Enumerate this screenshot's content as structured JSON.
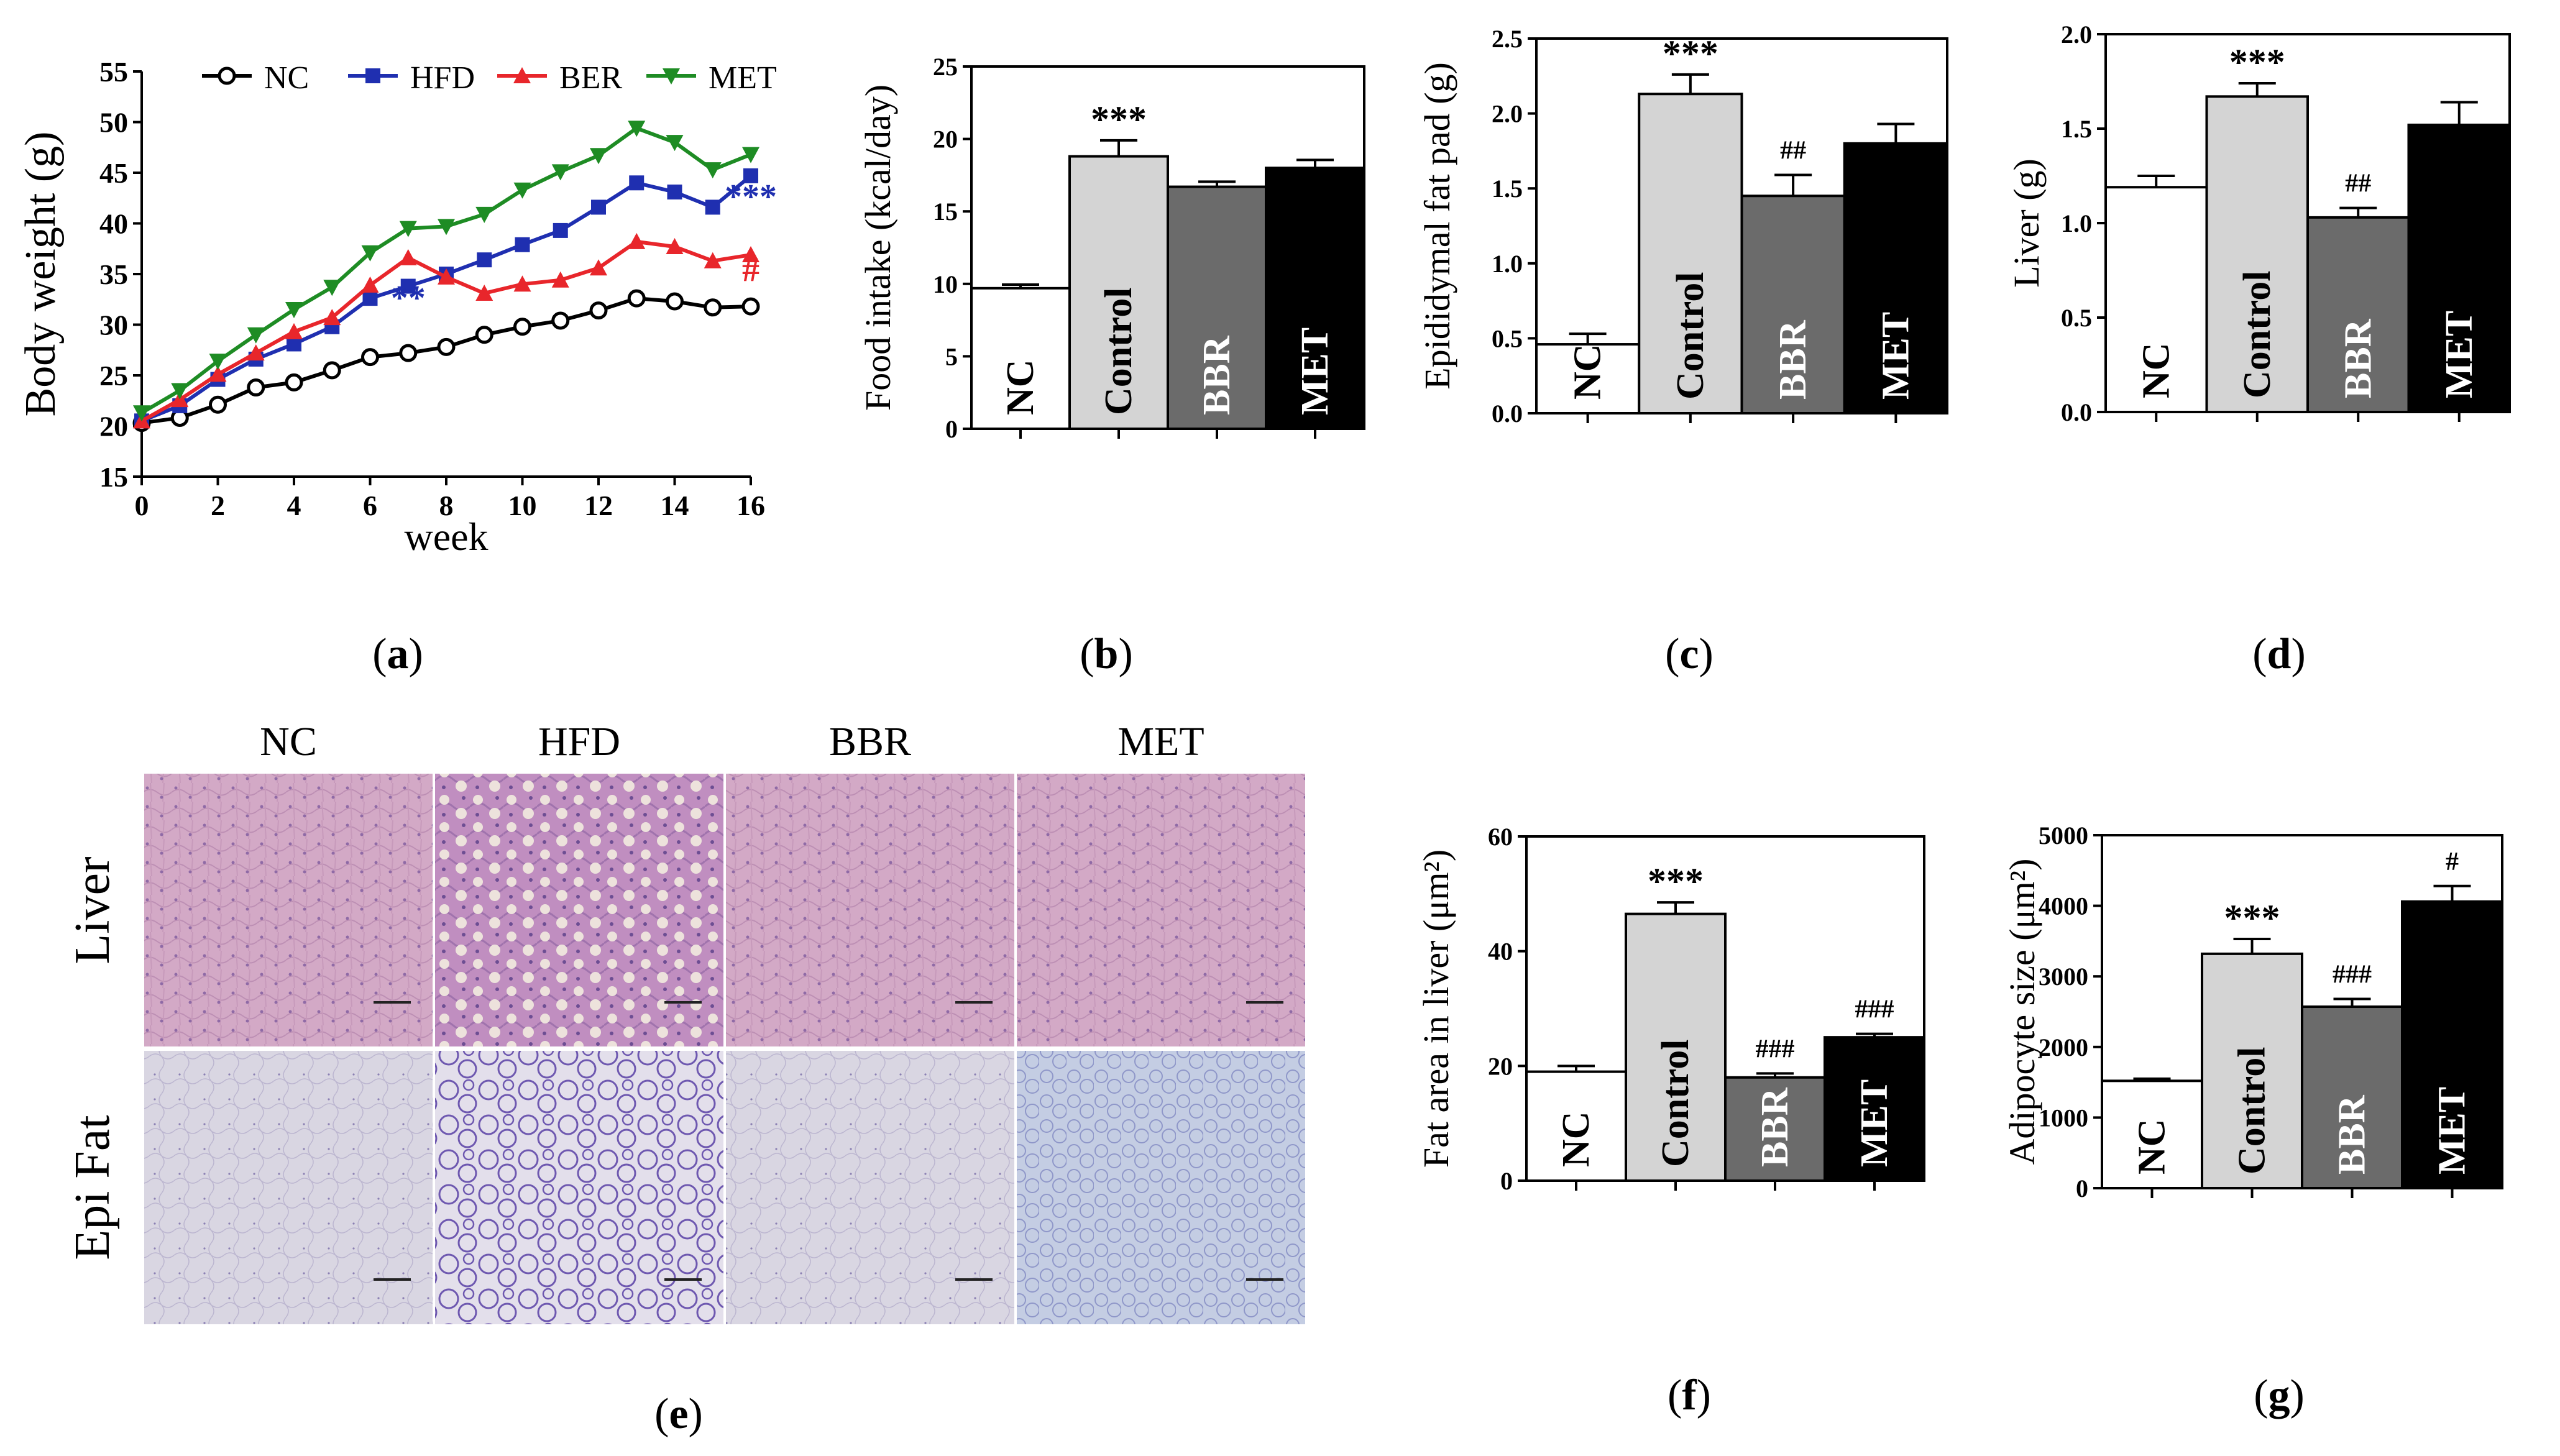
{
  "figure": {
    "panel_labels": {
      "a": "a",
      "b": "b",
      "c": "c",
      "d": "d",
      "e": "e",
      "f": "f",
      "g": "g"
    }
  },
  "colors": {
    "nc_line": "#000000",
    "hfd_line": "#1f2fb0",
    "ber_line": "#e8262b",
    "met_line": "#1e8c24",
    "bar_nc": "#ffffff",
    "bar_control": "#d4d4d4",
    "bar_bbr": "#6b6b6b",
    "bar_met": "#000000",
    "sig_blue": "#1f2fb0",
    "sig_red": "#e8262b"
  },
  "chart_data": [
    {
      "id": "a",
      "type": "line",
      "title": "",
      "xlabel": "week",
      "ylabel": "Body weight (g)",
      "xlim": [
        0,
        16
      ],
      "ylim": [
        15,
        55
      ],
      "xticks": [
        0,
        2,
        4,
        6,
        8,
        10,
        12,
        14,
        16
      ],
      "yticks": [
        15,
        20,
        25,
        30,
        35,
        40,
        45,
        50,
        55
      ],
      "x": [
        0,
        1,
        2,
        3,
        4,
        5,
        6,
        7,
        8,
        9,
        10,
        11,
        12,
        13,
        14,
        15,
        16
      ],
      "legend": [
        "NC",
        "HFD",
        "BER",
        "MET"
      ],
      "series": [
        {
          "name": "NC",
          "marker": "circle",
          "values": [
            20.3,
            20.8,
            22.1,
            23.8,
            24.3,
            25.5,
            26.8,
            27.2,
            27.8,
            29.0,
            29.8,
            30.4,
            31.4,
            32.6,
            32.3,
            31.7,
            31.8
          ]
        },
        {
          "name": "HFD",
          "marker": "square",
          "values": [
            20.5,
            22.0,
            24.6,
            26.6,
            28.1,
            29.8,
            32.6,
            33.8,
            35.0,
            36.4,
            37.9,
            39.3,
            41.6,
            44.0,
            43.1,
            41.6,
            44.7
          ]
        },
        {
          "name": "BER",
          "marker": "triangle-up",
          "values": [
            20.5,
            22.6,
            25.1,
            27.2,
            29.3,
            30.7,
            33.9,
            36.6,
            34.7,
            33.1,
            34.0,
            34.4,
            35.6,
            38.2,
            37.7,
            36.3,
            36.9
          ]
        },
        {
          "name": "MET",
          "marker": "triangle-down",
          "values": [
            21.3,
            23.5,
            26.4,
            29.0,
            31.5,
            33.7,
            37.1,
            39.5,
            39.7,
            40.9,
            43.3,
            45.1,
            46.7,
            49.4,
            48.0,
            45.3,
            46.8
          ]
        }
      ],
      "annotations": [
        {
          "text": "**",
          "x": 7,
          "y": 31.5,
          "color": "sig_blue"
        },
        {
          "text": "***",
          "x": 16,
          "y": 41.5,
          "color": "sig_blue"
        },
        {
          "text": "#",
          "x": 16,
          "y": 34.3,
          "color": "sig_red"
        }
      ]
    },
    {
      "id": "b",
      "type": "bar",
      "ylabel": "Food intake (kcal/day)",
      "ylim": [
        0,
        25
      ],
      "yticks": [
        0,
        5,
        10,
        15,
        20,
        25
      ],
      "categories": [
        "NC",
        "Control",
        "BBR",
        "MET"
      ],
      "values": [
        9.7,
        18.8,
        16.7,
        18.0
      ],
      "errors": [
        0.25,
        1.1,
        0.35,
        0.55
      ],
      "annotations": [
        {
          "index": 1,
          "text": "***"
        }
      ]
    },
    {
      "id": "c",
      "type": "bar",
      "ylabel": "Epididymal fat pad (g)",
      "ylim": [
        0,
        2.5
      ],
      "yticks": [
        "0.0",
        "0.5",
        "1.0",
        "1.5",
        "2.0",
        "2.5"
      ],
      "categories": [
        "NC",
        "Control",
        "BBR",
        "MET"
      ],
      "values": [
        0.46,
        2.13,
        1.45,
        1.8
      ],
      "errors": [
        0.07,
        0.13,
        0.14,
        0.13
      ],
      "annotations": [
        {
          "index": 1,
          "text": "***"
        },
        {
          "index": 2,
          "text": "##"
        }
      ]
    },
    {
      "id": "d",
      "type": "bar",
      "ylabel": "Liver (g)",
      "ylim": [
        0,
        2.0
      ],
      "yticks": [
        "0.0",
        "0.5",
        "1.0",
        "1.5",
        "2.0"
      ],
      "categories": [
        "NC",
        "Control",
        "BBR",
        "MET"
      ],
      "values": [
        1.19,
        1.67,
        1.03,
        1.52
      ],
      "errors": [
        0.06,
        0.07,
        0.05,
        0.12
      ],
      "annotations": [
        {
          "index": 1,
          "text": "***"
        },
        {
          "index": 2,
          "text": "##"
        }
      ]
    },
    {
      "id": "f",
      "type": "bar",
      "ylabel": "Fat area in liver (μm²)",
      "ylim": [
        0,
        60
      ],
      "yticks": [
        0,
        20,
        40,
        60
      ],
      "categories": [
        "NC",
        "Control",
        "BBR",
        "MET"
      ],
      "values": [
        19,
        46.5,
        18,
        25
      ],
      "errors": [
        1.0,
        2.0,
        0.7,
        0.6
      ],
      "annotations": [
        {
          "index": 1,
          "text": "***"
        },
        {
          "index": 2,
          "text": "###"
        },
        {
          "index": 3,
          "text": "###"
        }
      ]
    },
    {
      "id": "g",
      "type": "bar",
      "ylabel": "Adipocyte size (μm²)",
      "ylim": [
        0,
        5000
      ],
      "yticks": [
        0,
        1000,
        2000,
        3000,
        4000,
        5000
      ],
      "categories": [
        "NC",
        "Control",
        "BBR",
        "MET"
      ],
      "values": [
        1520,
        3320,
        2570,
        4060
      ],
      "errors": [
        30,
        210,
        110,
        220
      ],
      "annotations": [
        {
          "index": 1,
          "text": "***"
        },
        {
          "index": 2,
          "text": "###"
        },
        {
          "index": 3,
          "text": "#"
        }
      ]
    }
  ],
  "histology": {
    "columns": [
      "NC",
      "HFD",
      "BBR",
      "MET"
    ],
    "rows": [
      "Liver",
      "Epi Fat"
    ]
  }
}
